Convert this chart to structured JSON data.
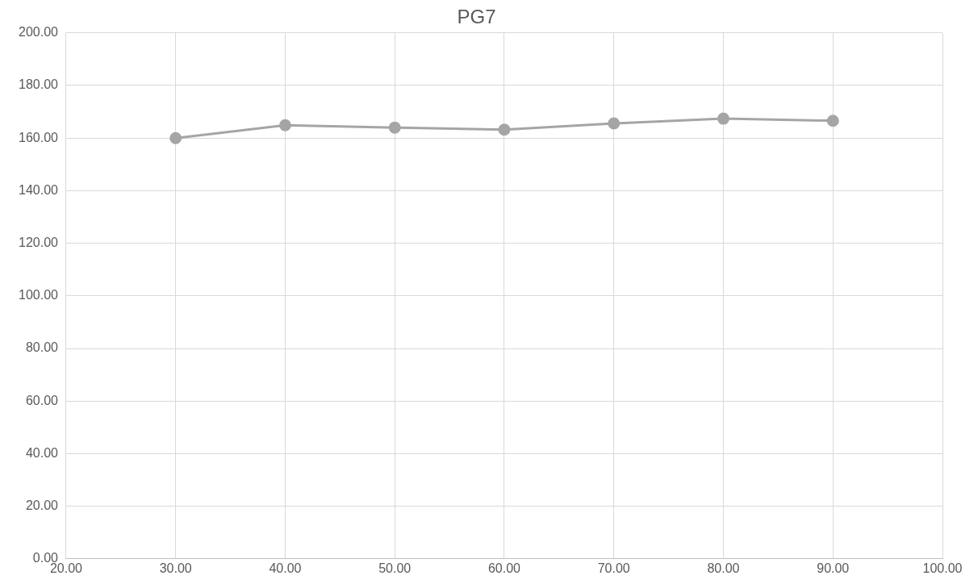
{
  "chart_data": {
    "type": "line",
    "title": "PG7",
    "x": [
      30,
      40,
      50,
      60,
      70,
      80,
      90
    ],
    "series": [
      {
        "color": "#a5a5a5",
        "values": [
          160.0,
          164.9,
          164.0,
          163.2,
          165.6,
          167.4,
          166.6
        ]
      }
    ],
    "xlim": [
      20,
      100
    ],
    "xticks": [
      {
        "value": 20,
        "label": "20.00"
      },
      {
        "value": 30,
        "label": "30.00"
      },
      {
        "value": 40,
        "label": "40.00"
      },
      {
        "value": 50,
        "label": "50.00"
      },
      {
        "value": 60,
        "label": "60.00"
      },
      {
        "value": 70,
        "label": "70.00"
      },
      {
        "value": 80,
        "label": "80.00"
      },
      {
        "value": 90,
        "label": "90.00"
      },
      {
        "value": 100,
        "label": "100.00"
      }
    ],
    "ylim": [
      0,
      200
    ],
    "yticks": [
      {
        "value": 0,
        "label": "0.00"
      },
      {
        "value": 20,
        "label": "20.00"
      },
      {
        "value": 40,
        "label": "40.00"
      },
      {
        "value": 60,
        "label": "60.00"
      },
      {
        "value": 80,
        "label": "80.00"
      },
      {
        "value": 100,
        "label": "100.00"
      },
      {
        "value": 120,
        "label": "120.00"
      },
      {
        "value": 140,
        "label": "140.00"
      },
      {
        "value": 160,
        "label": "160.00"
      },
      {
        "value": 180,
        "label": "180.00"
      },
      {
        "value": 200,
        "label": "200.00"
      }
    ],
    "grid": true,
    "marker": "circle",
    "line_style": "solid",
    "legend": false
  }
}
